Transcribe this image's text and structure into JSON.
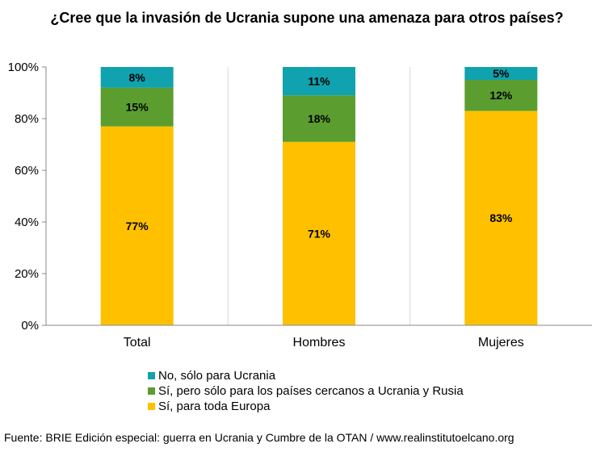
{
  "chart_data": {
    "type": "bar",
    "stacked": true,
    "title": "¿Cree que la invasión de Ucrania supone una amenaza para otros países?",
    "categories": [
      "Total",
      "Hombres",
      "Mujeres"
    ],
    "ylim": [
      0,
      100
    ],
    "yticks": [
      "0%",
      "20%",
      "40%",
      "60%",
      "80%",
      "100%"
    ],
    "grid": "vertical separators between categories",
    "legend_position": "bottom",
    "series": [
      {
        "name": "Sí, para toda Europa",
        "color": "#FFC000",
        "values": [
          77,
          71,
          83
        ],
        "labels": [
          "77%",
          "71%",
          "83%"
        ]
      },
      {
        "name": "Sí, pero sólo para los países cercanos a Ucrania y Rusia",
        "color": "#5B9E2F",
        "values": [
          15,
          18,
          12
        ],
        "labels": [
          "15%",
          "18%",
          "12%"
        ]
      },
      {
        "name": "No, sólo para Ucrania",
        "color": "#10A2AE",
        "values": [
          8,
          11,
          5
        ],
        "labels": [
          "8%",
          "11%",
          "5%"
        ]
      }
    ],
    "legend_order": [
      2,
      1,
      0
    ]
  },
  "source": "Fuente: BRIE Edición especial: guerra en Ucrania y Cumbre de la OTAN / www.realinstitutoelcano.org"
}
